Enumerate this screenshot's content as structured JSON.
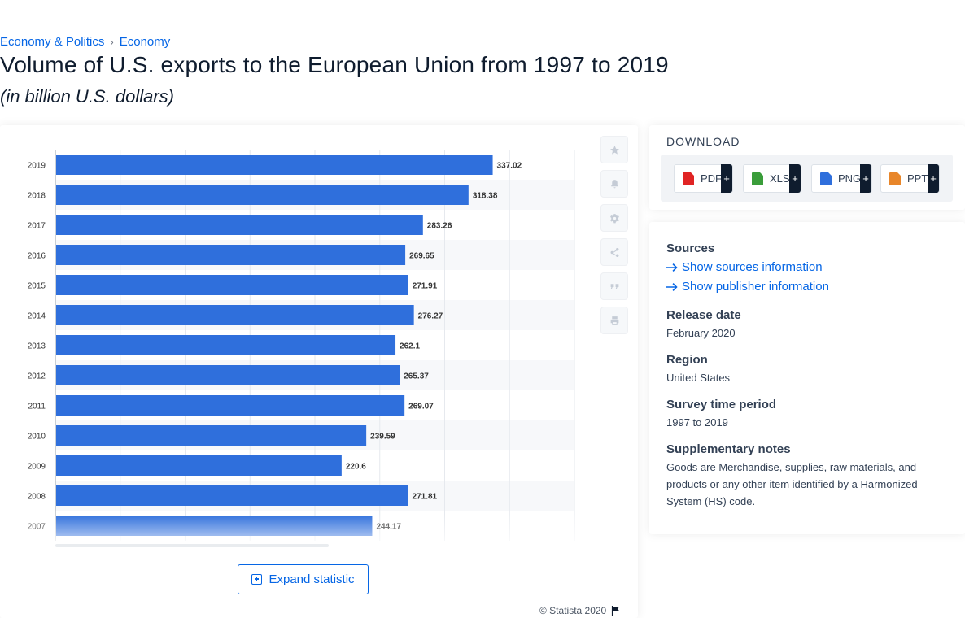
{
  "breadcrumb": {
    "items": [
      "Economy & Politics",
      "Economy"
    ],
    "separator": "›"
  },
  "page": {
    "title": "Volume of U.S. exports to the European Union from 1997 to 2019",
    "subtitle": "(in billion U.S. dollars)"
  },
  "chart_data": {
    "type": "bar",
    "orientation": "horizontal",
    "categories": [
      "2019",
      "2018",
      "2017",
      "2016",
      "2015",
      "2014",
      "2013",
      "2012",
      "2011",
      "2010",
      "2009",
      "2008",
      "2007"
    ],
    "values": [
      337.02,
      318.38,
      283.26,
      269.65,
      271.91,
      276.27,
      262.1,
      265.37,
      269.07,
      239.59,
      220.6,
      271.81,
      244.17
    ],
    "value_labels": [
      "337.02",
      "318.38",
      "283.26",
      "269.65",
      "271.91",
      "276.27",
      "262.1",
      "265.37",
      "269.07",
      "239.59",
      "220.6",
      "271.81",
      "244.17"
    ],
    "xlim": [
      0,
      400
    ],
    "grid": true,
    "bar_color": "#2f6fdc",
    "title": "",
    "xlabel": "",
    "ylabel": ""
  },
  "tools": [
    "star-icon",
    "bell-icon",
    "gear-icon",
    "share-icon",
    "quote-icon",
    "print-icon"
  ],
  "expand_label": "Expand statistic",
  "copyright": "© Statista 2020",
  "download": {
    "title": "DOWNLOAD",
    "buttons": [
      {
        "label": "PDF",
        "icon": "pdf-icon",
        "color": "#e02424"
      },
      {
        "label": "XLS",
        "icon": "xls-icon",
        "color": "#3a9d3a"
      },
      {
        "label": "PNG",
        "icon": "png-icon",
        "color": "#2f6fdc"
      },
      {
        "label": "PPT",
        "icon": "ppt-icon",
        "color": "#e8862a"
      }
    ],
    "plus": "+"
  },
  "info": {
    "sources_heading": "Sources",
    "show_sources": "Show sources information",
    "show_publisher": "Show publisher information",
    "release_heading": "Release date",
    "release_value": "February 2020",
    "region_heading": "Region",
    "region_value": "United States",
    "period_heading": "Survey time period",
    "period_value": "1997 to 2019",
    "notes_heading": "Supplementary notes",
    "notes_value": "Goods are Merchandise, supplies, raw materials, and products or any other item identified by a Harmonized System (HS) code."
  }
}
